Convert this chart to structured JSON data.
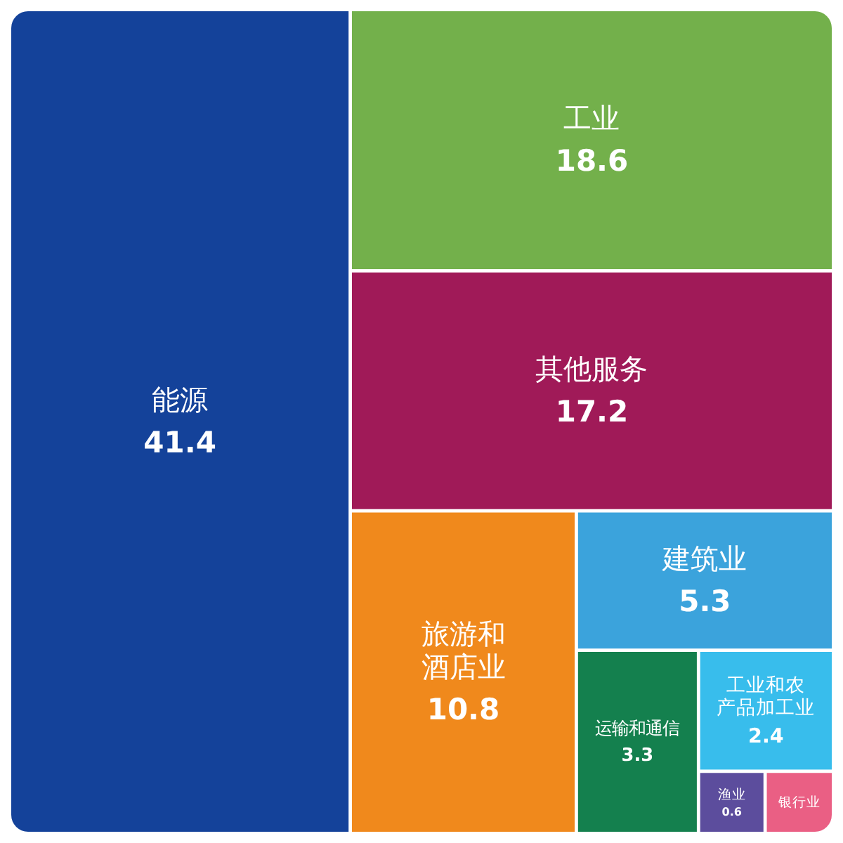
{
  "chart_data": {
    "type": "other",
    "categories": [
      "能源",
      "工业",
      "其他服务",
      "旅游和酒店业",
      "建筑业",
      "运输和通信",
      "工业和农产品加工业",
      "渔业",
      "银行业"
    ],
    "values": [
      41.4,
      18.6,
      17.2,
      10.8,
      5.3,
      3.3,
      2.4,
      0.6,
      null
    ],
    "value_labels": [
      "41.4",
      "18.6",
      "17.2",
      "10.8",
      "5.3",
      "3.3",
      "2.4",
      "0.6",
      null
    ],
    "colors": [
      "#14429a",
      "#73b04b",
      "#a01a58",
      "#f0891c",
      "#3ba3dc",
      "#14804e",
      "#38bdec",
      "#5c4d9d",
      "#ea5f84"
    ]
  }
}
